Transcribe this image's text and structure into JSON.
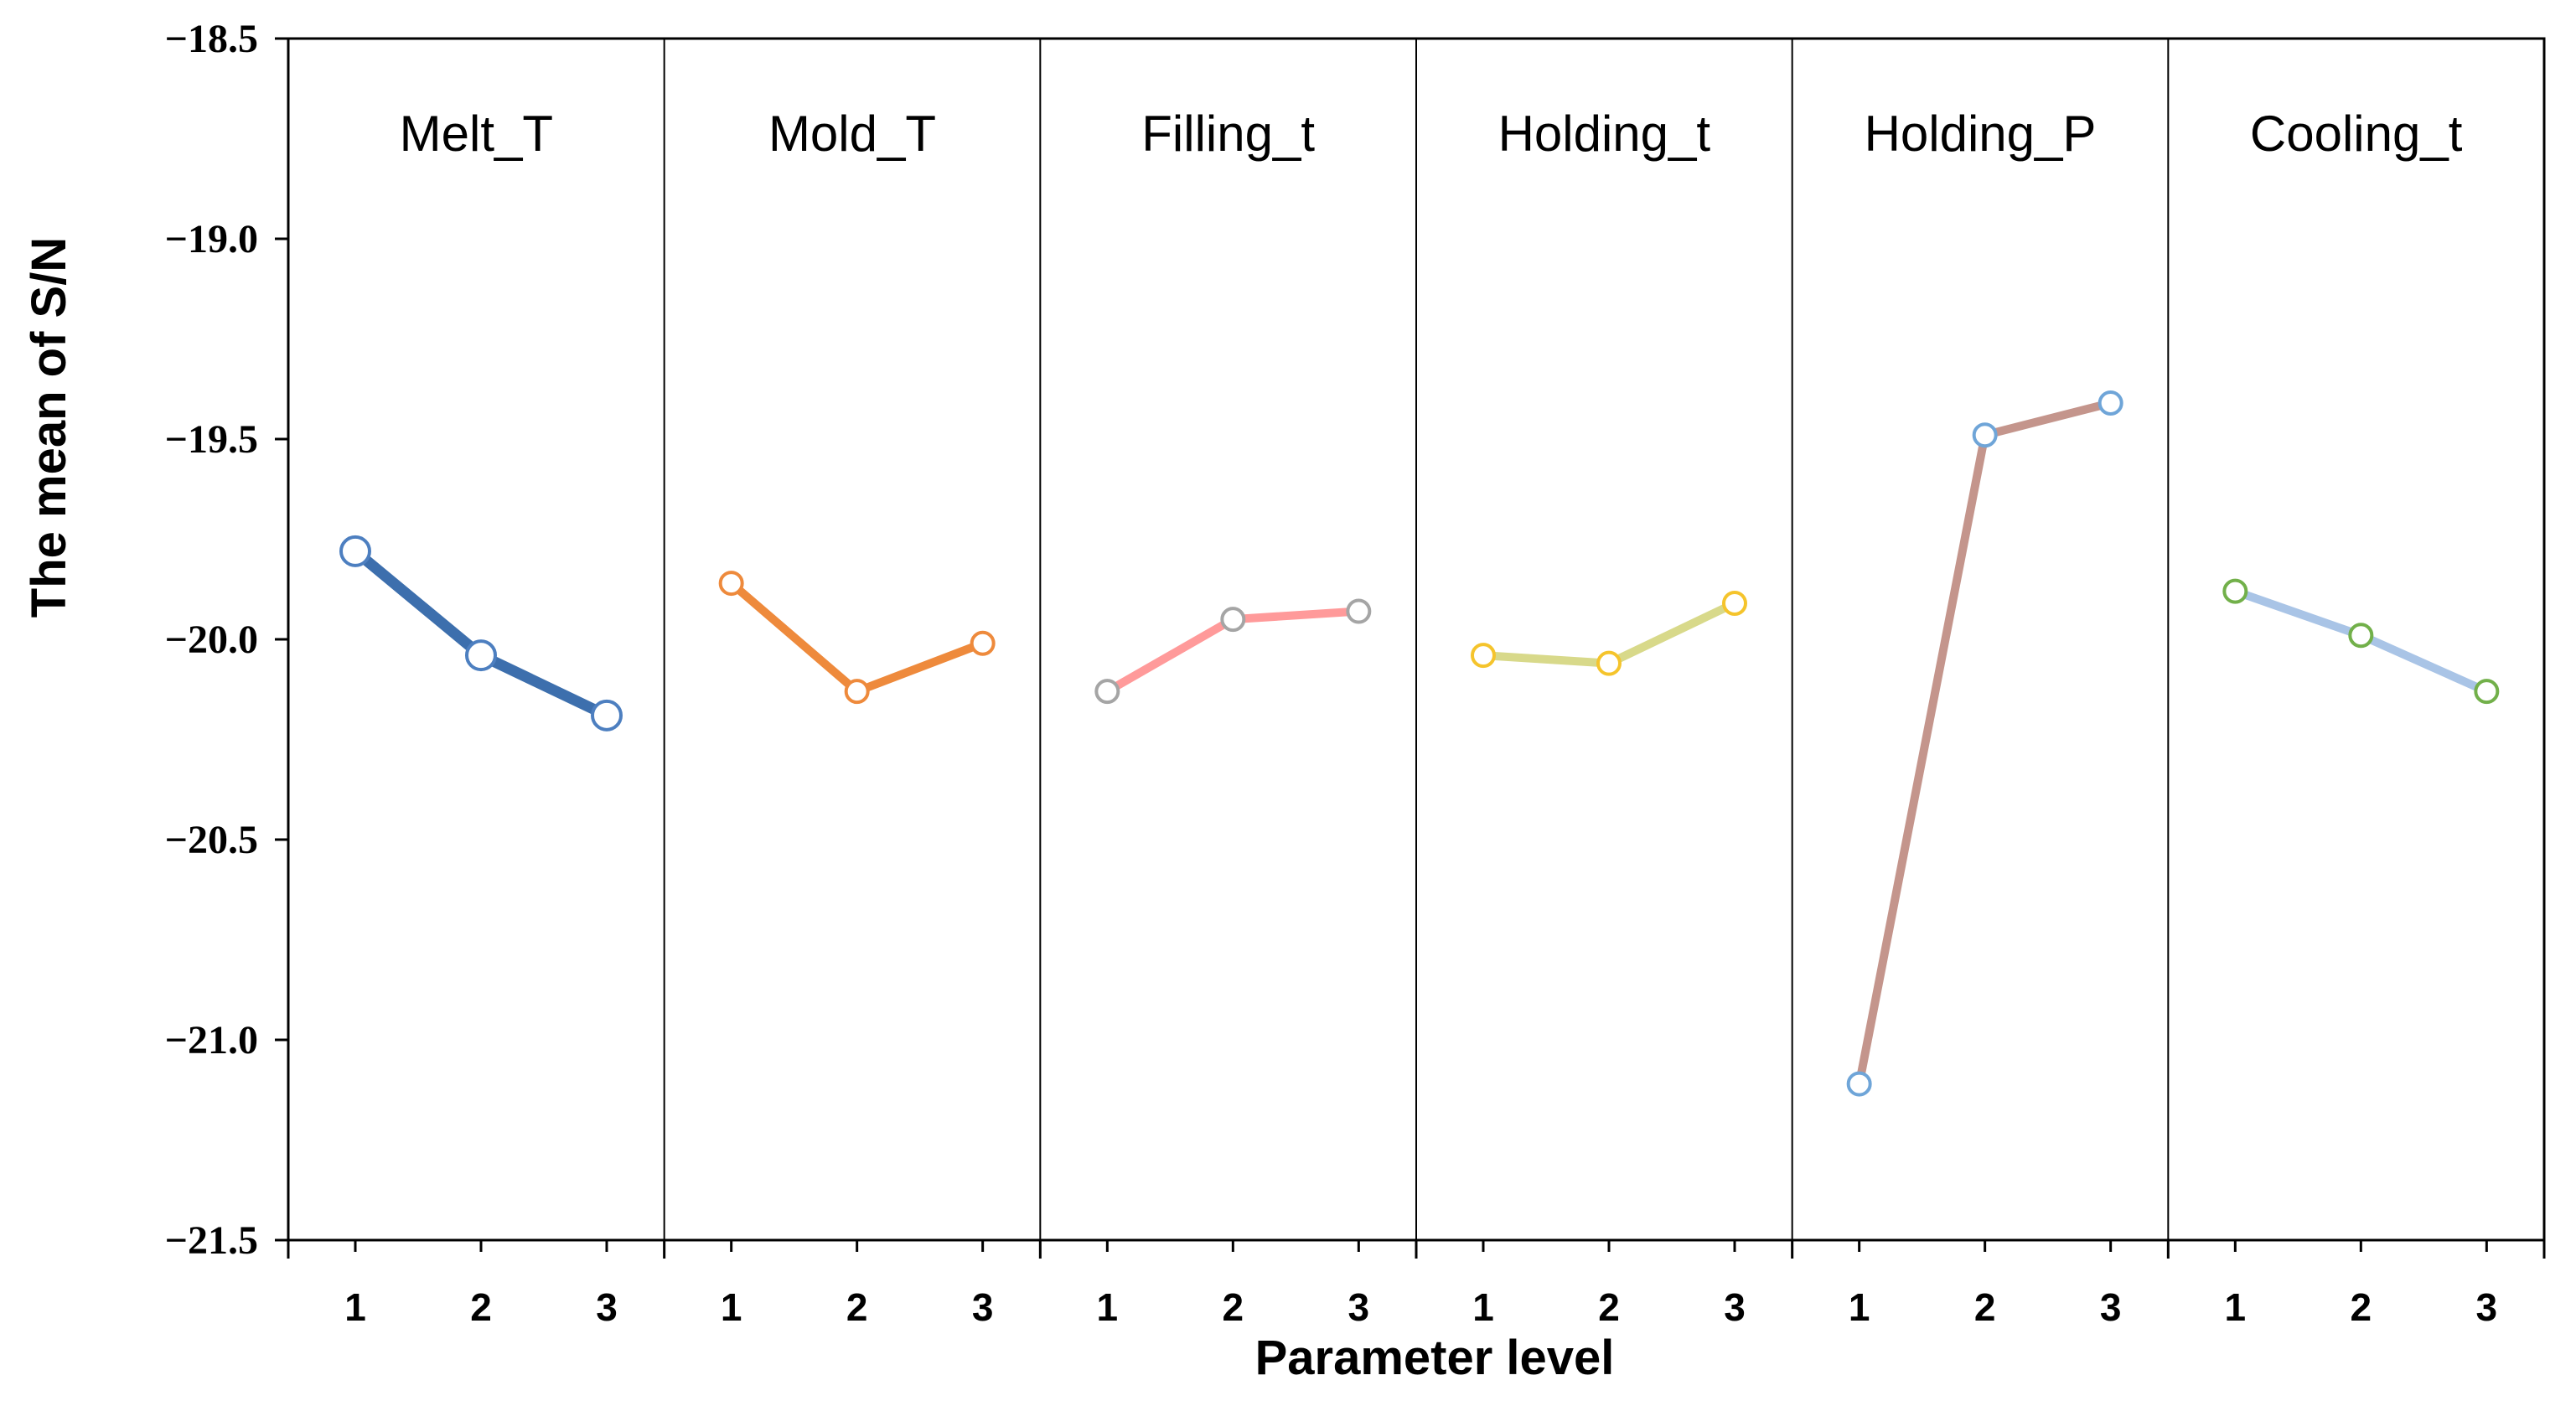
{
  "chart_data": {
    "type": "line",
    "title": "",
    "xlabel": "Parameter level",
    "ylabel": "The mean of S/N",
    "ylim": [
      -21.5,
      -18.5
    ],
    "yticks": [
      "−18.5",
      "−19.0",
      "−19.5",
      "−20.0",
      "−20.5",
      "−21.0",
      "−21.5"
    ],
    "ytick_values": [
      -18.5,
      -19.0,
      -19.5,
      -20.0,
      -20.5,
      -21.0,
      -21.5
    ],
    "levels": [
      "1",
      "2",
      "3"
    ],
    "grid": false,
    "panels": [
      {
        "name": "Melt_T",
        "values": [
          -19.78,
          -20.04,
          -20.19
        ],
        "line_color": "#3d6fad",
        "marker_color": "#4d7fc0",
        "line_width": "thick"
      },
      {
        "name": "Mold_T",
        "values": [
          -19.86,
          -20.13,
          -20.01
        ],
        "line_color": "#ee8a3c",
        "marker_color": "#ee8a3c",
        "line_width": "medium"
      },
      {
        "name": "Filling_t",
        "values": [
          -20.13,
          -19.95,
          -19.93
        ],
        "line_color": "#ff9a9a",
        "marker_color": "#a5a5a5",
        "line_width": "medium"
      },
      {
        "name": "Holding_t",
        "values": [
          -20.04,
          -20.06,
          -19.91
        ],
        "line_color": "#d8d98a",
        "marker_color": "#f5c42c",
        "line_width": "medium"
      },
      {
        "name": "Holding_P",
        "values": [
          -21.11,
          -19.49,
          -19.41
        ],
        "line_color": "#c4958c",
        "marker_color": "#6fa5d8",
        "line_width": "medium"
      },
      {
        "name": "Cooling_t",
        "values": [
          -19.88,
          -19.99,
          -20.13
        ],
        "line_color": "#a9c4e6",
        "marker_color": "#72b04a",
        "line_width": "medium"
      }
    ]
  }
}
